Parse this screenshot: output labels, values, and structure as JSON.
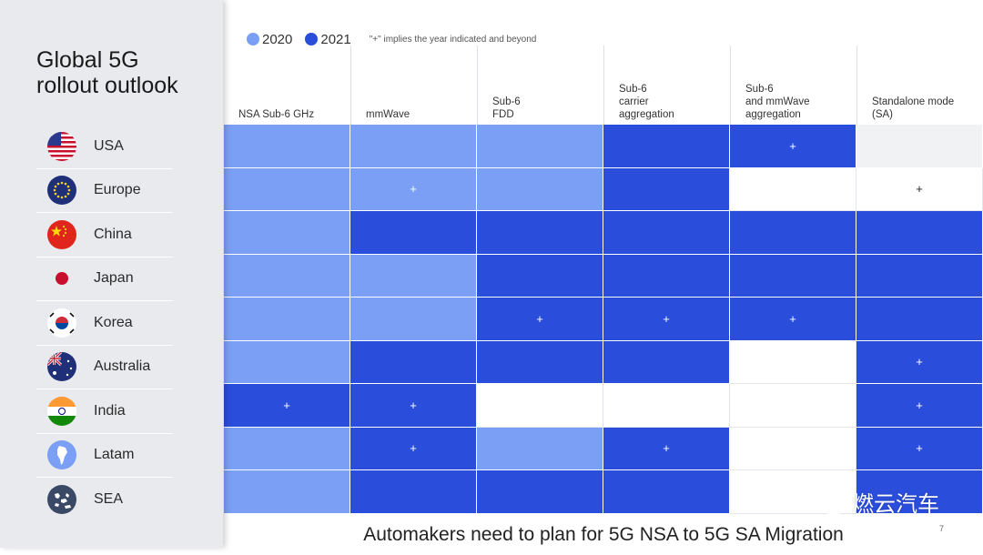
{
  "title_lines": [
    "Global 5G",
    "rollout outlook"
  ],
  "legend": {
    "items": [
      {
        "label": "2020",
        "color": "#7b9ff4"
      },
      {
        "label": "2021",
        "color": "#2a4ddc"
      }
    ],
    "note": "\"+\" implies the year indicated and beyond"
  },
  "columns": [
    "NSA Sub-6 GHz",
    "mmWave",
    "Sub-6\nFDD",
    "Sub-6\ncarrier\naggregation",
    "Sub-6\nand mmWave\naggregation",
    "Standalone mode\n(SA)"
  ],
  "countries": [
    {
      "name": "USA",
      "flag": "usa-flag-icon"
    },
    {
      "name": "Europe",
      "flag": "eu-flag-icon"
    },
    {
      "name": "China",
      "flag": "china-flag-icon"
    },
    {
      "name": "Japan",
      "flag": "japan-flag-icon"
    },
    {
      "name": "Korea",
      "flag": "korea-flag-icon"
    },
    {
      "name": "Australia",
      "flag": "australia-flag-icon"
    },
    {
      "name": "India",
      "flag": "india-flag-icon"
    },
    {
      "name": "Latam",
      "flag": "latam-globe-icon"
    },
    {
      "name": "SEA",
      "flag": "sea-globe-icon"
    }
  ],
  "grid": [
    [
      {
        "s": "2020",
        "t": ""
      },
      {
        "s": "2020",
        "t": ""
      },
      {
        "s": "2020",
        "t": ""
      },
      {
        "s": "2021",
        "t": ""
      },
      {
        "s": "2021",
        "t": "+"
      },
      {
        "s": "grey",
        "t": ""
      }
    ],
    [
      {
        "s": "2020",
        "t": ""
      },
      {
        "s": "2020",
        "t": "+"
      },
      {
        "s": "2020",
        "t": ""
      },
      {
        "s": "2021",
        "t": ""
      },
      {
        "s": "none",
        "t": ""
      },
      {
        "s": "none",
        "t": "+"
      }
    ],
    [
      {
        "s": "2020",
        "t": ""
      },
      {
        "s": "2021",
        "t": ""
      },
      {
        "s": "2021",
        "t": ""
      },
      {
        "s": "2021",
        "t": ""
      },
      {
        "s": "2021",
        "t": ""
      },
      {
        "s": "2021",
        "t": ""
      }
    ],
    [
      {
        "s": "2020",
        "t": ""
      },
      {
        "s": "2020",
        "t": ""
      },
      {
        "s": "2021",
        "t": ""
      },
      {
        "s": "2021",
        "t": ""
      },
      {
        "s": "2021",
        "t": ""
      },
      {
        "s": "2021",
        "t": ""
      }
    ],
    [
      {
        "s": "2020",
        "t": ""
      },
      {
        "s": "2020",
        "t": ""
      },
      {
        "s": "2021",
        "t": "+"
      },
      {
        "s": "2021",
        "t": "+"
      },
      {
        "s": "2021",
        "t": "+"
      },
      {
        "s": "2021",
        "t": ""
      }
    ],
    [
      {
        "s": "2020",
        "t": ""
      },
      {
        "s": "2021",
        "t": ""
      },
      {
        "s": "2021",
        "t": ""
      },
      {
        "s": "2021",
        "t": ""
      },
      {
        "s": "none",
        "t": ""
      },
      {
        "s": "2021",
        "t": "+"
      }
    ],
    [
      {
        "s": "2021",
        "t": "+"
      },
      {
        "s": "2021",
        "t": "+"
      },
      {
        "s": "none",
        "t": ""
      },
      {
        "s": "none",
        "t": ""
      },
      {
        "s": "none",
        "t": ""
      },
      {
        "s": "2021",
        "t": "+"
      }
    ],
    [
      {
        "s": "2020",
        "t": ""
      },
      {
        "s": "2021",
        "t": "+"
      },
      {
        "s": "2020",
        "t": ""
      },
      {
        "s": "2021",
        "t": "+"
      },
      {
        "s": "none",
        "t": ""
      },
      {
        "s": "2021",
        "t": "+"
      }
    ],
    [
      {
        "s": "2020",
        "t": ""
      },
      {
        "s": "2021",
        "t": ""
      },
      {
        "s": "2021",
        "t": ""
      },
      {
        "s": "2021",
        "t": ""
      },
      {
        "s": "none",
        "t": ""
      },
      {
        "s": "2021",
        "t": ""
      }
    ]
  ],
  "footer": "Automakers need to plan for 5G NSA to 5G SA Migration",
  "page_number": "7",
  "watermark": "燃云汽车"
}
